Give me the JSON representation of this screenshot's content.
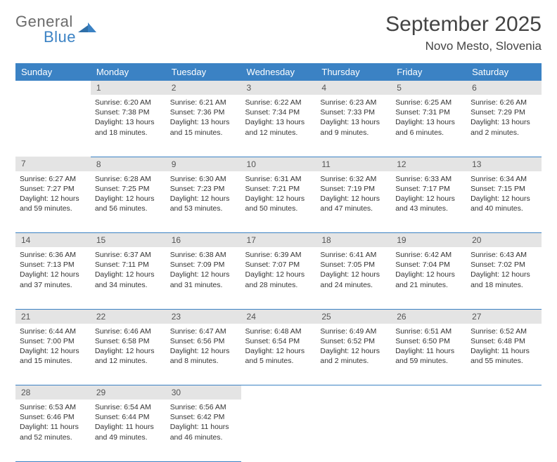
{
  "logo": {
    "general": "General",
    "blue": "Blue"
  },
  "title": "September 2025",
  "location": "Novo Mesto, Slovenia",
  "colors": {
    "header_bg": "#3b82c4",
    "header_text": "#ffffff",
    "daynum_bg": "#e4e4e4",
    "daynum_text": "#555555",
    "border": "#3b82c4",
    "body_text": "#333333"
  },
  "weekdays": [
    "Sunday",
    "Monday",
    "Tuesday",
    "Wednesday",
    "Thursday",
    "Friday",
    "Saturday"
  ],
  "weeks": [
    [
      null,
      {
        "n": "1",
        "sr": "Sunrise: 6:20 AM",
        "ss": "Sunset: 7:38 PM",
        "d1": "Daylight: 13 hours",
        "d2": "and 18 minutes."
      },
      {
        "n": "2",
        "sr": "Sunrise: 6:21 AM",
        "ss": "Sunset: 7:36 PM",
        "d1": "Daylight: 13 hours",
        "d2": "and 15 minutes."
      },
      {
        "n": "3",
        "sr": "Sunrise: 6:22 AM",
        "ss": "Sunset: 7:34 PM",
        "d1": "Daylight: 13 hours",
        "d2": "and 12 minutes."
      },
      {
        "n": "4",
        "sr": "Sunrise: 6:23 AM",
        "ss": "Sunset: 7:33 PM",
        "d1": "Daylight: 13 hours",
        "d2": "and 9 minutes."
      },
      {
        "n": "5",
        "sr": "Sunrise: 6:25 AM",
        "ss": "Sunset: 7:31 PM",
        "d1": "Daylight: 13 hours",
        "d2": "and 6 minutes."
      },
      {
        "n": "6",
        "sr": "Sunrise: 6:26 AM",
        "ss": "Sunset: 7:29 PM",
        "d1": "Daylight: 13 hours",
        "d2": "and 2 minutes."
      }
    ],
    [
      {
        "n": "7",
        "sr": "Sunrise: 6:27 AM",
        "ss": "Sunset: 7:27 PM",
        "d1": "Daylight: 12 hours",
        "d2": "and 59 minutes."
      },
      {
        "n": "8",
        "sr": "Sunrise: 6:28 AM",
        "ss": "Sunset: 7:25 PM",
        "d1": "Daylight: 12 hours",
        "d2": "and 56 minutes."
      },
      {
        "n": "9",
        "sr": "Sunrise: 6:30 AM",
        "ss": "Sunset: 7:23 PM",
        "d1": "Daylight: 12 hours",
        "d2": "and 53 minutes."
      },
      {
        "n": "10",
        "sr": "Sunrise: 6:31 AM",
        "ss": "Sunset: 7:21 PM",
        "d1": "Daylight: 12 hours",
        "d2": "and 50 minutes."
      },
      {
        "n": "11",
        "sr": "Sunrise: 6:32 AM",
        "ss": "Sunset: 7:19 PM",
        "d1": "Daylight: 12 hours",
        "d2": "and 47 minutes."
      },
      {
        "n": "12",
        "sr": "Sunrise: 6:33 AM",
        "ss": "Sunset: 7:17 PM",
        "d1": "Daylight: 12 hours",
        "d2": "and 43 minutes."
      },
      {
        "n": "13",
        "sr": "Sunrise: 6:34 AM",
        "ss": "Sunset: 7:15 PM",
        "d1": "Daylight: 12 hours",
        "d2": "and 40 minutes."
      }
    ],
    [
      {
        "n": "14",
        "sr": "Sunrise: 6:36 AM",
        "ss": "Sunset: 7:13 PM",
        "d1": "Daylight: 12 hours",
        "d2": "and 37 minutes."
      },
      {
        "n": "15",
        "sr": "Sunrise: 6:37 AM",
        "ss": "Sunset: 7:11 PM",
        "d1": "Daylight: 12 hours",
        "d2": "and 34 minutes."
      },
      {
        "n": "16",
        "sr": "Sunrise: 6:38 AM",
        "ss": "Sunset: 7:09 PM",
        "d1": "Daylight: 12 hours",
        "d2": "and 31 minutes."
      },
      {
        "n": "17",
        "sr": "Sunrise: 6:39 AM",
        "ss": "Sunset: 7:07 PM",
        "d1": "Daylight: 12 hours",
        "d2": "and 28 minutes."
      },
      {
        "n": "18",
        "sr": "Sunrise: 6:41 AM",
        "ss": "Sunset: 7:05 PM",
        "d1": "Daylight: 12 hours",
        "d2": "and 24 minutes."
      },
      {
        "n": "19",
        "sr": "Sunrise: 6:42 AM",
        "ss": "Sunset: 7:04 PM",
        "d1": "Daylight: 12 hours",
        "d2": "and 21 minutes."
      },
      {
        "n": "20",
        "sr": "Sunrise: 6:43 AM",
        "ss": "Sunset: 7:02 PM",
        "d1": "Daylight: 12 hours",
        "d2": "and 18 minutes."
      }
    ],
    [
      {
        "n": "21",
        "sr": "Sunrise: 6:44 AM",
        "ss": "Sunset: 7:00 PM",
        "d1": "Daylight: 12 hours",
        "d2": "and 15 minutes."
      },
      {
        "n": "22",
        "sr": "Sunrise: 6:46 AM",
        "ss": "Sunset: 6:58 PM",
        "d1": "Daylight: 12 hours",
        "d2": "and 12 minutes."
      },
      {
        "n": "23",
        "sr": "Sunrise: 6:47 AM",
        "ss": "Sunset: 6:56 PM",
        "d1": "Daylight: 12 hours",
        "d2": "and 8 minutes."
      },
      {
        "n": "24",
        "sr": "Sunrise: 6:48 AM",
        "ss": "Sunset: 6:54 PM",
        "d1": "Daylight: 12 hours",
        "d2": "and 5 minutes."
      },
      {
        "n": "25",
        "sr": "Sunrise: 6:49 AM",
        "ss": "Sunset: 6:52 PM",
        "d1": "Daylight: 12 hours",
        "d2": "and 2 minutes."
      },
      {
        "n": "26",
        "sr": "Sunrise: 6:51 AM",
        "ss": "Sunset: 6:50 PM",
        "d1": "Daylight: 11 hours",
        "d2": "and 59 minutes."
      },
      {
        "n": "27",
        "sr": "Sunrise: 6:52 AM",
        "ss": "Sunset: 6:48 PM",
        "d1": "Daylight: 11 hours",
        "d2": "and 55 minutes."
      }
    ],
    [
      {
        "n": "28",
        "sr": "Sunrise: 6:53 AM",
        "ss": "Sunset: 6:46 PM",
        "d1": "Daylight: 11 hours",
        "d2": "and 52 minutes."
      },
      {
        "n": "29",
        "sr": "Sunrise: 6:54 AM",
        "ss": "Sunset: 6:44 PM",
        "d1": "Daylight: 11 hours",
        "d2": "and 49 minutes."
      },
      {
        "n": "30",
        "sr": "Sunrise: 6:56 AM",
        "ss": "Sunset: 6:42 PM",
        "d1": "Daylight: 11 hours",
        "d2": "and 46 minutes."
      },
      null,
      null,
      null,
      null
    ]
  ]
}
